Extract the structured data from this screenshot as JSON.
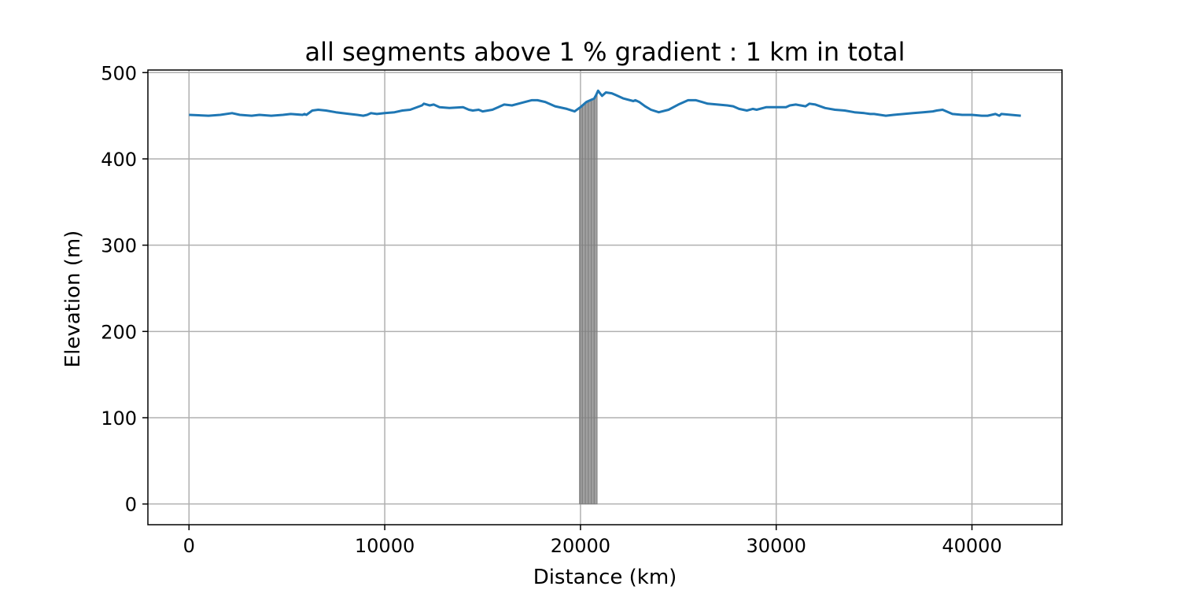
{
  "chart_data": {
    "type": "line",
    "title": "all segments above 1 % gradient : 1 km in total",
    "xlabel": "Distance (km)",
    "ylabel": "Elevation (m)",
    "xlim": [
      -2100,
      44600
    ],
    "ylim": [
      -24,
      503
    ],
    "xticks": [
      0,
      10000,
      20000,
      30000,
      40000
    ],
    "yticks": [
      0,
      100,
      200,
      300,
      400,
      500
    ],
    "grid": true,
    "colors": {
      "line": "#1f77b4",
      "highlight": "#808080"
    },
    "series": [
      {
        "x": [
          0,
          1000,
          1600,
          2200,
          2600,
          3200,
          3600,
          4200,
          4800,
          5200,
          5800,
          5900,
          6000,
          6300,
          6600,
          7000,
          7500,
          8200,
          8600,
          8900,
          9100,
          9300,
          9600,
          10000,
          10500,
          10900,
          11300,
          11900,
          12000,
          12300,
          12500,
          12800,
          13300,
          14000,
          14300,
          14500,
          14800,
          15000,
          15500,
          15800,
          16100,
          16500,
          17000,
          17500,
          17800,
          18200,
          18700,
          19300,
          19700,
          20000,
          20300,
          20700,
          20800,
          20900,
          21000,
          21100,
          21300,
          21600,
          21800,
          22200,
          22700,
          22800,
          23000,
          23300,
          23600,
          24000,
          24500,
          25000,
          25500,
          25900,
          26200,
          26500,
          27000,
          27500,
          27800,
          28100,
          28500,
          28800,
          29000,
          29500,
          30000,
          30500,
          30700,
          31000,
          31500,
          31700,
          32000,
          32500,
          33000,
          33500,
          34000,
          34500,
          34800,
          35000,
          35300,
          35600,
          36000,
          36500,
          37000,
          37500,
          38000,
          38200,
          38500,
          39000,
          39500,
          40000,
          40500,
          40800,
          41000,
          41200,
          41400,
          41500,
          42000,
          42500
        ],
        "y": [
          451,
          450,
          451,
          453,
          451,
          450,
          451,
          450,
          451,
          452,
          451,
          452,
          451,
          456,
          457,
          456,
          454,
          452,
          451,
          450,
          451,
          453,
          452,
          453,
          454,
          456,
          457,
          462,
          464,
          462,
          463,
          460,
          459,
          460,
          457,
          456,
          457,
          455,
          457,
          460,
          463,
          462,
          465,
          468,
          468,
          466,
          461,
          458,
          455,
          460,
          466,
          470,
          474,
          479,
          476,
          473,
          477,
          476,
          474,
          470,
          467,
          468,
          466,
          461,
          457,
          454,
          457,
          463,
          468,
          468,
          466,
          464,
          463,
          462,
          461,
          458,
          456,
          458,
          457,
          460,
          460,
          460,
          462,
          463,
          461,
          464,
          463,
          459,
          457,
          456,
          454,
          453,
          452,
          452,
          451,
          450,
          451,
          452,
          453,
          454,
          455,
          456,
          457,
          452,
          451,
          451,
          450,
          450,
          451,
          452,
          450,
          452,
          451,
          450
        ]
      }
    ],
    "highlight_segments": [
      [
        19950,
        20100
      ],
      [
        20100,
        20250
      ],
      [
        20250,
        20400
      ],
      [
        20400,
        20550
      ],
      [
        20550,
        20700
      ],
      [
        20700,
        20850
      ]
    ]
  }
}
